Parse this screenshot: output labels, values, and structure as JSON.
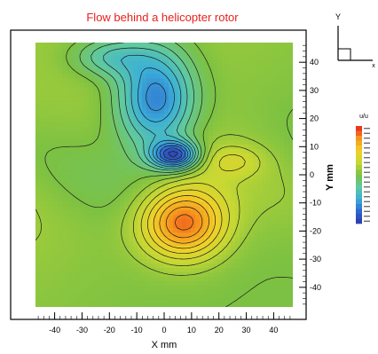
{
  "chart_data": {
    "type": "heatmap",
    "title": "Flow behind a helicopter rotor",
    "xlabel": "X mm",
    "ylabel": "Y mm",
    "xlim": [
      -47,
      47
    ],
    "ylim": [
      -47,
      47
    ],
    "x_ticks": [
      "-40",
      "-30",
      "-20",
      "-10",
      "0",
      "10",
      "20",
      "30",
      "40"
    ],
    "x_tick_values": [
      -40,
      -30,
      -20,
      -10,
      0,
      10,
      20,
      30,
      40
    ],
    "y_ticks": [
      "40",
      "30",
      "20",
      "10",
      "0",
      "-10",
      "-20",
      "-30",
      "-40"
    ],
    "y_tick_values": [
      40,
      30,
      20,
      10,
      0,
      -10,
      -20,
      -30,
      -40
    ],
    "colorbar_label": "u/u",
    "colorbar_range": [
      -1,
      1
    ],
    "features": [
      {
        "kind": "min",
        "x": -3,
        "y": 27,
        "value": -0.75,
        "sx": 10,
        "sy": 13
      },
      {
        "kind": "min",
        "x": 4,
        "y": 7,
        "value": -0.9,
        "sx": 6,
        "sy": 3.5
      },
      {
        "kind": "min",
        "x": -20,
        "y": 42,
        "value": -0.35,
        "sx": 10,
        "sy": 5
      },
      {
        "kind": "max",
        "x": 7,
        "y": -17,
        "value": 0.85,
        "sx": 11,
        "sy": 9
      },
      {
        "kind": "max",
        "x": 25,
        "y": 5,
        "value": 0.2,
        "sx": 8,
        "sy": 4
      }
    ],
    "colors": [
      "#2d3aa8",
      "#2f66d0",
      "#3bb0d8",
      "#5fc9a0",
      "#7cc142",
      "#c7d833",
      "#f2d028",
      "#f7941d",
      "#e8211d"
    ],
    "grid": false,
    "legend_position": "right"
  },
  "axes_icon": {
    "y_label": "Y",
    "x_label": "x"
  }
}
